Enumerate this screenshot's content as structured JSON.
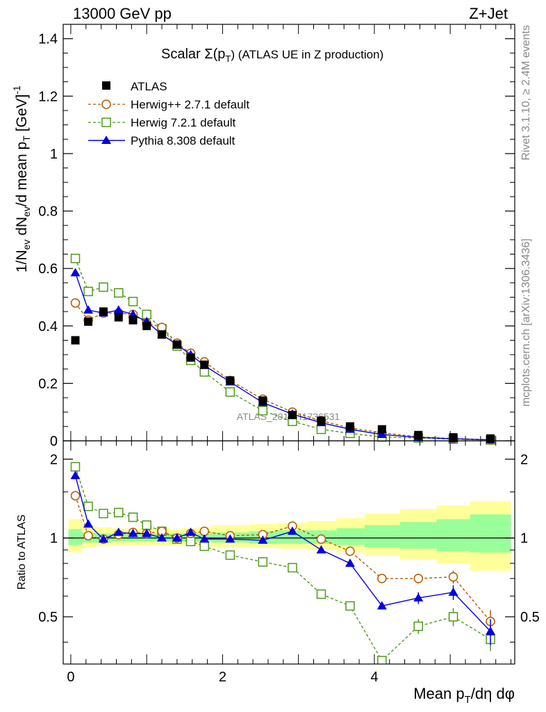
{
  "header": {
    "left": "13000 GeV pp",
    "right": "Z+Jet"
  },
  "side": {
    "rivet": "Rivet 3.1.10, ≥ 2.4M events",
    "mcplots": "mcplots.cern.ch [arXiv:1306.3436]"
  },
  "watermark": "ATLAS_2019_I1736531",
  "colors": {
    "atlas": "#000000",
    "herwigpp": "#b35900",
    "herwig7": "#4c9a1a",
    "pythia": "#0000e0",
    "band_outer": "#ffff99",
    "band_inner": "#99ff99"
  },
  "chart_data": [
    {
      "type": "line",
      "panel": "main",
      "title": "Scalar Σ(p_T) (ATLAS UE in Z production)",
      "title_parts": {
        "pre": "Scalar Σ(p",
        "sub": "T",
        "post": ") (ATLAS UE in Z production)"
      },
      "ylabel": "1/N_ev dN_ev/d mean p_T [GeV]^-1",
      "xlim": [
        -0.1,
        5.85
      ],
      "ylim": [
        0,
        1.45
      ],
      "yticks": [
        0,
        0.2,
        0.4,
        0.6,
        0.8,
        1,
        1.2,
        1.4
      ],
      "ytick_labels": [
        "0",
        "0.2",
        "0.4",
        "0.6",
        "0.8",
        "1",
        "1.2",
        "1.4"
      ],
      "legend_position": "top-left",
      "legend": [
        "ATLAS",
        "Herwig++ 2.7.1 default",
        "Herwig 7.2.1 default",
        "Pythia 8.308 default"
      ],
      "x": [
        0.06,
        0.23,
        0.43,
        0.63,
        0.82,
        1.0,
        1.2,
        1.4,
        1.58,
        1.76,
        2.1,
        2.53,
        2.92,
        3.3,
        3.68,
        4.1,
        4.58,
        5.04,
        5.53
      ],
      "series": [
        {
          "name": "ATLAS",
          "values": [
            0.35,
            0.415,
            0.45,
            0.43,
            0.42,
            0.4,
            0.37,
            0.335,
            0.29,
            0.265,
            0.21,
            0.14,
            0.09,
            0.07,
            0.05,
            0.04,
            0.02,
            0.012,
            0.008
          ]
        },
        {
          "name": "Herwig++ 2.7.1 default",
          "values": [
            0.48,
            0.42,
            0.445,
            0.445,
            0.44,
            0.41,
            0.395,
            0.34,
            0.305,
            0.275,
            0.21,
            0.145,
            0.1,
            0.07,
            0.045,
            0.028,
            0.014,
            0.008,
            0.004
          ]
        },
        {
          "name": "Herwig 7.2.1 default",
          "values": [
            0.635,
            0.52,
            0.535,
            0.515,
            0.485,
            0.44,
            0.39,
            0.33,
            0.28,
            0.24,
            0.17,
            0.105,
            0.068,
            0.04,
            0.026,
            0.013,
            0.01,
            0.006,
            0.003
          ]
        },
        {
          "name": "Pythia 8.308 default",
          "values": [
            0.585,
            0.455,
            0.445,
            0.455,
            0.44,
            0.415,
            0.37,
            0.335,
            0.3,
            0.262,
            0.205,
            0.133,
            0.093,
            0.063,
            0.04,
            0.022,
            0.012,
            0.007,
            0.0035
          ]
        }
      ]
    },
    {
      "type": "line",
      "panel": "ratio",
      "ylabel": "Ratio to ATLAS",
      "xlabel": "Mean p_T/dη dφ",
      "xlabel_parts": {
        "pre": "Mean p",
        "sub": "T",
        "post": "/dη dφ"
      },
      "xlim": [
        -0.1,
        5.85
      ],
      "ylim": [
        0.33,
        2.35
      ],
      "xticks": [
        0,
        2,
        4
      ],
      "xtick_labels": [
        "0",
        "2",
        "4"
      ],
      "yticks": [
        0.5,
        1,
        2
      ],
      "ytick_labels": [
        "0.5",
        "1",
        "2"
      ],
      "reference": 1,
      "band_edges": [
        -0.03,
        0.15,
        0.33,
        0.53,
        0.73,
        0.91,
        1.1,
        1.3,
        1.49,
        1.67,
        1.85,
        2.35,
        2.72,
        3.1,
        3.5,
        3.87,
        4.34,
        4.82,
        5.26,
        5.8
      ],
      "band_outer": [
        [
          0.88,
          1.18
        ],
        [
          0.92,
          1.12
        ],
        [
          0.93,
          1.1
        ],
        [
          0.94,
          1.09
        ],
        [
          0.94,
          1.09
        ],
        [
          0.94,
          1.09
        ],
        [
          0.94,
          1.09
        ],
        [
          0.94,
          1.08
        ],
        [
          0.94,
          1.09
        ],
        [
          0.93,
          1.1
        ],
        [
          0.92,
          1.12
        ],
        [
          0.92,
          1.13
        ],
        [
          0.91,
          1.14
        ],
        [
          0.9,
          1.16
        ],
        [
          0.88,
          1.19
        ],
        [
          0.86,
          1.24
        ],
        [
          0.83,
          1.29
        ],
        [
          0.8,
          1.33
        ],
        [
          0.75,
          1.38
        ]
      ],
      "band_inner": [
        [
          0.94,
          1.08
        ],
        [
          0.96,
          1.05
        ],
        [
          0.96,
          1.04
        ],
        [
          0.97,
          1.04
        ],
        [
          0.97,
          1.04
        ],
        [
          0.97,
          1.04
        ],
        [
          0.97,
          1.04
        ],
        [
          0.97,
          1.04
        ],
        [
          0.97,
          1.04
        ],
        [
          0.97,
          1.04
        ],
        [
          0.96,
          1.05
        ],
        [
          0.95,
          1.06
        ],
        [
          0.95,
          1.07
        ],
        [
          0.95,
          1.07
        ],
        [
          0.94,
          1.09
        ],
        [
          0.92,
          1.12
        ],
        [
          0.91,
          1.15
        ],
        [
          0.89,
          1.18
        ],
        [
          0.88,
          1.23
        ]
      ],
      "x": [
        0.06,
        0.23,
        0.43,
        0.63,
        0.82,
        1.0,
        1.2,
        1.4,
        1.58,
        1.76,
        2.1,
        2.53,
        2.92,
        3.3,
        3.68,
        4.1,
        4.58,
        5.04,
        5.53
      ],
      "series": [
        {
          "name": "Herwig++ 2.7.1 default",
          "values": [
            1.45,
            1.02,
            0.99,
            1.03,
            1.05,
            1.04,
            1.06,
            1.0,
            1.04,
            1.06,
            1.02,
            1.03,
            1.11,
            0.99,
            0.89,
            0.7,
            0.7,
            0.71,
            0.48
          ],
          "errors": [
            0,
            0,
            0,
            0,
            0,
            0,
            0,
            0,
            0,
            0,
            0,
            0,
            0,
            0,
            0,
            0,
            0.03,
            0.04,
            0.05
          ]
        },
        {
          "name": "Herwig 7.2.1 default",
          "values": [
            1.87,
            1.32,
            1.24,
            1.25,
            1.2,
            1.12,
            1.06,
            0.99,
            0.97,
            0.93,
            0.86,
            0.81,
            0.77,
            0.61,
            0.55,
            0.34,
            0.46,
            0.5,
            0.41
          ],
          "errors": [
            0,
            0,
            0,
            0,
            0,
            0,
            0,
            0,
            0,
            0,
            0,
            0,
            0,
            0,
            0,
            0,
            0.03,
            0.04,
            0.04
          ]
        },
        {
          "name": "Pythia 8.308 default",
          "values": [
            1.73,
            1.13,
            0.99,
            1.05,
            1.04,
            1.04,
            1.0,
            1.0,
            1.05,
            0.99,
            0.99,
            0.98,
            1.06,
            0.9,
            0.8,
            0.55,
            0.59,
            0.62,
            0.44
          ],
          "errors": [
            0,
            0,
            0,
            0,
            0,
            0,
            0,
            0,
            0,
            0,
            0,
            0,
            0,
            0,
            0,
            0,
            0.03,
            0.04,
            0.05
          ]
        }
      ]
    }
  ]
}
